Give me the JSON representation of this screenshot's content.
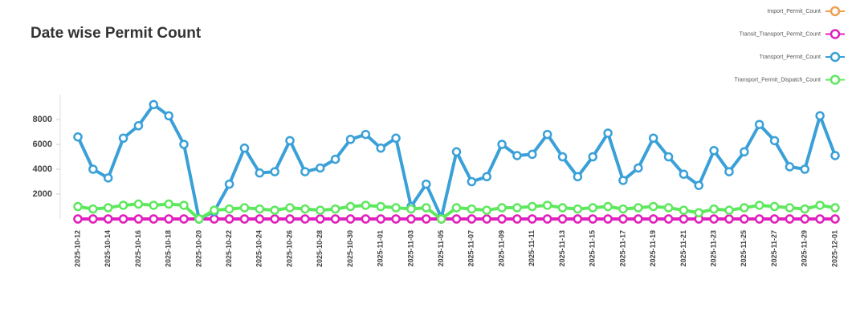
{
  "chart_data": {
    "type": "line",
    "title": "Date wise Permit Count",
    "categories": [
      "2025-10-12",
      null,
      "2025-10-14",
      null,
      "2025-10-16",
      null,
      "2025-10-18",
      null,
      "2025-10-20",
      null,
      "2025-10-22",
      null,
      "2025-10-24",
      null,
      "2025-10-26",
      null,
      "2025-10-28",
      null,
      "2025-10-30",
      null,
      "2025-11-01",
      null,
      "2025-11-03",
      null,
      "2025-11-05",
      null,
      "2025-11-07",
      null,
      "2025-11-09",
      null,
      "2025-11-11",
      null,
      "2025-11-13",
      null,
      "2025-11-15",
      null,
      "2025-11-17",
      null,
      "2025-11-19",
      null,
      "2025-11-21",
      null,
      "2025-11-23",
      null,
      "2025-11-25",
      null,
      "2025-11-27",
      null,
      "2025-11-29",
      null,
      "2025-12-01"
    ],
    "series": [
      {
        "name": "Import_Permit_Count",
        "color": "#f0a050",
        "values": [
          0,
          0,
          0,
          0,
          0,
          0,
          0,
          0,
          0,
          0,
          0,
          0,
          0,
          0,
          0,
          0,
          0,
          0,
          0,
          0,
          0,
          0,
          0,
          0,
          0,
          0,
          0,
          0,
          0,
          0,
          0,
          0,
          0,
          0,
          0,
          0,
          0,
          0,
          0,
          0,
          0,
          0,
          0,
          0,
          0,
          0,
          0,
          0,
          0,
          0,
          0
        ]
      },
      {
        "name": "Transit_Transport_Permit_Count",
        "color": "#e020c0",
        "values": [
          0,
          0,
          0,
          0,
          0,
          0,
          0,
          0,
          0,
          0,
          0,
          0,
          0,
          0,
          0,
          0,
          0,
          0,
          0,
          0,
          0,
          0,
          0,
          0,
          0,
          0,
          0,
          0,
          0,
          0,
          0,
          0,
          0,
          0,
          0,
          0,
          0,
          0,
          0,
          0,
          0,
          0,
          0,
          0,
          0,
          0,
          0,
          0,
          0,
          0,
          0
        ]
      },
      {
        "name": "Transport_Permit_Count",
        "color": "#3aa0d8",
        "values": [
          6600,
          4000,
          3300,
          6500,
          7500,
          9200,
          8300,
          6000,
          0,
          600,
          2800,
          5700,
          3700,
          3800,
          6300,
          3800,
          4100,
          4800,
          6400,
          6800,
          5700,
          6500,
          1000,
          2800,
          100,
          5400,
          3000,
          3400,
          6000,
          5100,
          5200,
          6800,
          5000,
          3400,
          5000,
          6900,
          3100,
          4100,
          6500,
          5000,
          3600,
          2700,
          5500,
          3800,
          5400,
          7600,
          6300,
          4200,
          4000,
          8300,
          5100
        ]
      },
      {
        "name": "Transport_Permit_Dispatch_Count",
        "color": "#5ee85e",
        "values": [
          1000,
          800,
          900,
          1100,
          1200,
          1100,
          1200,
          1100,
          0,
          700,
          800,
          900,
          800,
          700,
          900,
          800,
          700,
          800,
          1000,
          1100,
          1000,
          900,
          800,
          900,
          0,
          900,
          800,
          700,
          900,
          900,
          1000,
          1100,
          900,
          800,
          900,
          1000,
          800,
          900,
          1000,
          900,
          700,
          500,
          800,
          700,
          900,
          1100,
          1000,
          900,
          800,
          1100,
          900
        ]
      }
    ],
    "ylim": [
      0,
      10000
    ],
    "yticks": [
      2000,
      4000,
      6000,
      8000
    ]
  }
}
